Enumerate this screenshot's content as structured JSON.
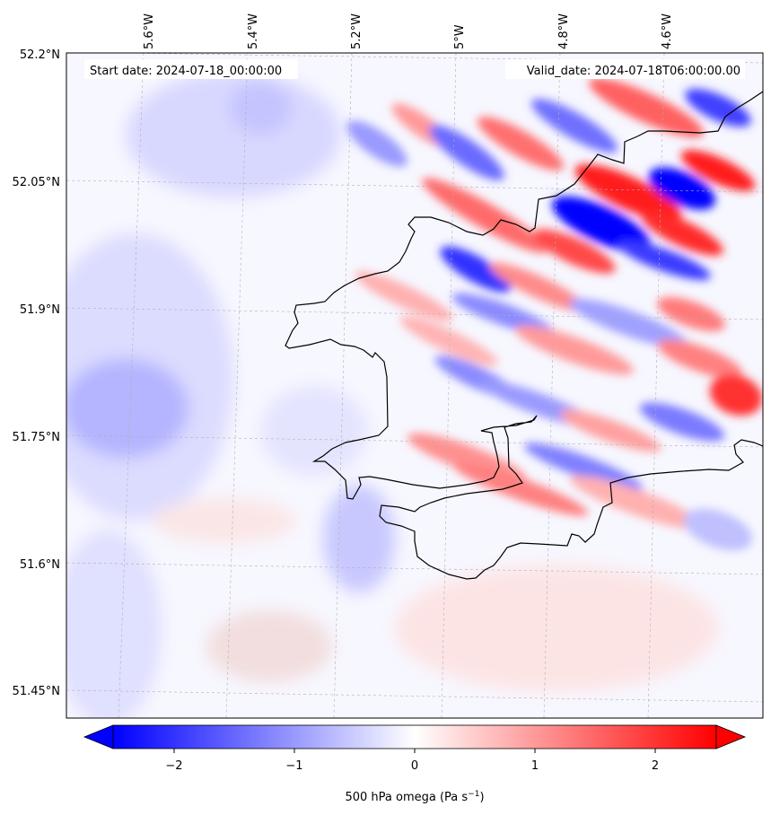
{
  "map": {
    "start_date": "Start date: 2024-07-18_00:00:00",
    "valid_date": "Valid_date: 2024-07-18T06:00:00.00",
    "lon_labels": [
      "5.6°W",
      "5.4°W",
      "5.2°W",
      "5°W",
      "4.8°W",
      "4.6°W"
    ],
    "lat_labels": [
      "52.2°N",
      "52.05°N",
      "51.9°N",
      "51.75°N",
      "51.6°N",
      "51.45°N"
    ],
    "field": "500 hPa omega",
    "coastline_color": "#000000"
  },
  "colorbar": {
    "tick_labels": [
      "−2",
      "−1",
      "0",
      "1",
      "2"
    ],
    "range": [
      -2.5,
      2.5
    ],
    "colors": {
      "negative": "#0000ff",
      "zero": "#ffffff",
      "positive": "#ff0000"
    },
    "label_main": "500 hPa omega (Pa s",
    "label_sup": "−1",
    "label_end": ")"
  }
}
